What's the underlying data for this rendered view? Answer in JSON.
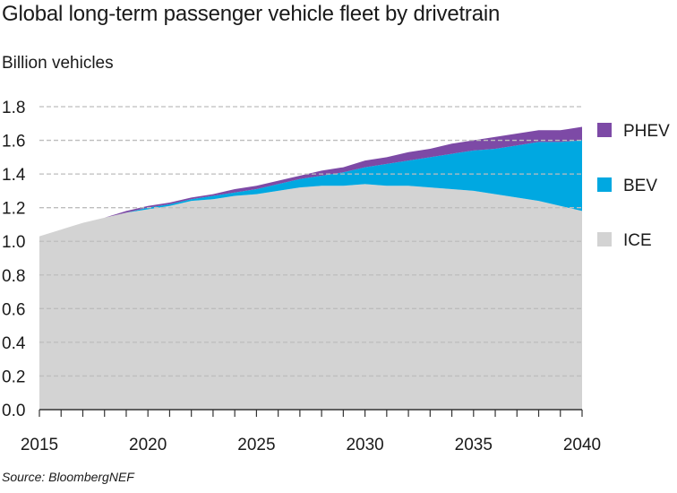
{
  "title": "Global long-term passenger vehicle fleet by drivetrain",
  "source": "Source: BloombergNEF",
  "chart_data": {
    "type": "area",
    "stacked": true,
    "title": "Global long-term passenger vehicle fleet by drivetrain",
    "ylabel": "Billion vehicles",
    "xlabel": "",
    "x": [
      2015,
      2016,
      2017,
      2018,
      2019,
      2020,
      2021,
      2022,
      2023,
      2024,
      2025,
      2026,
      2027,
      2028,
      2029,
      2030,
      2031,
      2032,
      2033,
      2034,
      2035,
      2036,
      2037,
      2038,
      2039,
      2040
    ],
    "xlim": [
      2015,
      2040
    ],
    "ylim": [
      0,
      1.8
    ],
    "x_ticks": [
      2015,
      2020,
      2025,
      2030,
      2035,
      2040
    ],
    "y_ticks": [
      0.0,
      0.2,
      0.4,
      0.6,
      0.8,
      1.0,
      1.2,
      1.4,
      1.6,
      1.8
    ],
    "y_tick_labels": [
      "0.0",
      "0.2",
      "0.4",
      "0.6",
      "0.8",
      "1.0",
      "1.2",
      "1.4",
      "1.6",
      "1.8"
    ],
    "x_tick_labels": [
      "2015",
      "2020",
      "2025",
      "2030",
      "2035",
      "2040"
    ],
    "grid": "horizontal-dashed",
    "legend_position": "right",
    "series": [
      {
        "name": "ICE",
        "color": "#d3d3d3",
        "values": [
          1.03,
          1.07,
          1.11,
          1.14,
          1.17,
          1.19,
          1.21,
          1.24,
          1.25,
          1.27,
          1.28,
          1.3,
          1.32,
          1.33,
          1.33,
          1.34,
          1.33,
          1.33,
          1.32,
          1.31,
          1.3,
          1.28,
          1.26,
          1.24,
          1.21,
          1.18
        ]
      },
      {
        "name": "BEV",
        "color": "#00a8e1",
        "values": [
          0.0,
          0.0,
          0.0,
          0.0,
          0.0,
          0.01,
          0.01,
          0.01,
          0.02,
          0.02,
          0.03,
          0.04,
          0.05,
          0.06,
          0.08,
          0.1,
          0.13,
          0.15,
          0.18,
          0.21,
          0.24,
          0.27,
          0.31,
          0.35,
          0.38,
          0.42
        ]
      },
      {
        "name": "PHEV",
        "color": "#7d4aa6",
        "values": [
          0.0,
          0.0,
          0.0,
          0.0,
          0.01,
          0.01,
          0.01,
          0.01,
          0.01,
          0.02,
          0.02,
          0.02,
          0.02,
          0.03,
          0.03,
          0.04,
          0.04,
          0.05,
          0.05,
          0.06,
          0.06,
          0.07,
          0.07,
          0.07,
          0.07,
          0.08
        ]
      }
    ],
    "legend_order": [
      "PHEV",
      "BEV",
      "ICE"
    ]
  }
}
